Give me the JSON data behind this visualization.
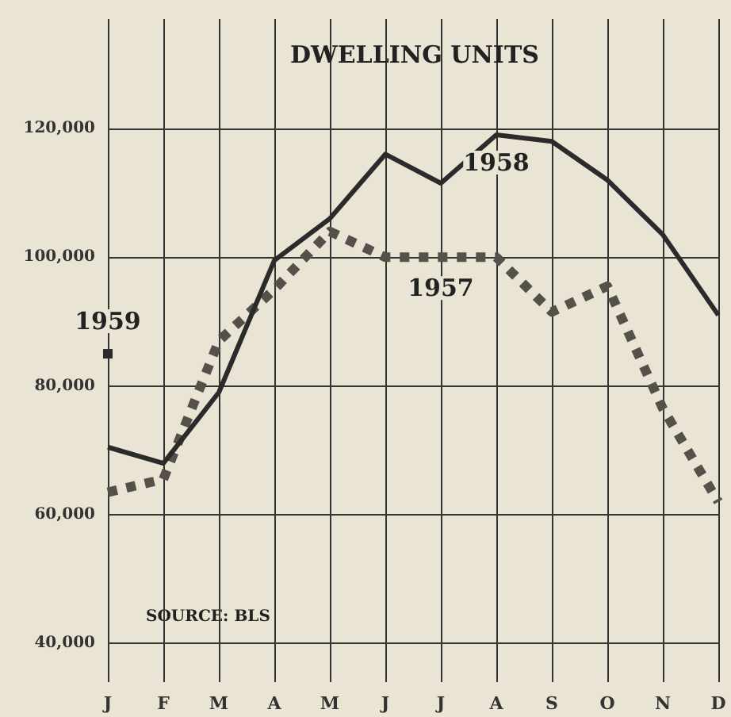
{
  "chart_data": {
    "type": "line",
    "title": "DWELLING UNITS",
    "categories": [
      "J",
      "F",
      "M",
      "A",
      "M",
      "J",
      "J",
      "A",
      "S",
      "O",
      "N",
      "D"
    ],
    "series": [
      {
        "name": "1958",
        "color": "#2b2b2b",
        "line_style": "solid",
        "marker": "none",
        "values": [
          70500,
          68000,
          79000,
          99500,
          106000,
          116000,
          111500,
          119000,
          118000,
          112000,
          103500,
          91000
        ]
      },
      {
        "name": "1957",
        "color": "#555049",
        "line_style": "dotted",
        "marker": "none",
        "values": [
          63500,
          65500,
          87000,
          95000,
          104000,
          100000,
          100000,
          100000,
          91500,
          95500,
          76500,
          62000
        ]
      },
      {
        "name": "1959",
        "color": "#2b2b2b",
        "marker": "square",
        "values": [
          85000,
          null,
          null,
          null,
          null,
          null,
          null,
          null,
          null,
          null,
          null,
          null
        ]
      }
    ],
    "ylim": [
      34000,
      137000
    ],
    "yticks": [
      {
        "value": 40000,
        "label": "40,000"
      },
      {
        "value": 60000,
        "label": "60,000"
      },
      {
        "value": 80000,
        "label": "80,000"
      },
      {
        "value": 100000,
        "label": "100,000"
      },
      {
        "value": 120000,
        "label": "120,000"
      }
    ],
    "grid": true,
    "legend": false,
    "annotations": [
      "SOURCE: BLS"
    ]
  }
}
